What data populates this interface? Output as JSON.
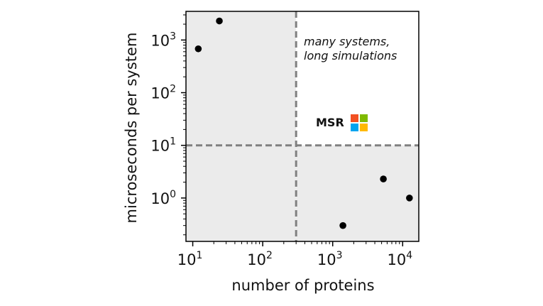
{
  "chart_data": {
    "type": "scatter",
    "xlabel": "number of proteins",
    "ylabel": "microseconds per system",
    "x_scale": "log",
    "y_scale": "log",
    "xlim": [
      8,
      17000
    ],
    "ylim": [
      0.15,
      3500
    ],
    "x_ticks": [
      {
        "base": "10",
        "exp": "1",
        "value": 10
      },
      {
        "base": "10",
        "exp": "2",
        "value": 100
      },
      {
        "base": "10",
        "exp": "3",
        "value": 1000
      },
      {
        "base": "10",
        "exp": "4",
        "value": 10000
      }
    ],
    "y_ticks": [
      {
        "base": "10",
        "exp": "0",
        "value": 1
      },
      {
        "base": "10",
        "exp": "1",
        "value": 10
      },
      {
        "base": "10",
        "exp": "2",
        "value": 100
      },
      {
        "base": "10",
        "exp": "3",
        "value": 1000
      }
    ],
    "thresholds": {
      "x": 300,
      "y": 10
    },
    "shaded_quadrants": [
      "top-left",
      "bottom-left",
      "bottom-right"
    ],
    "points": [
      {
        "x": 12,
        "y": 680
      },
      {
        "x": 24,
        "y": 2300
      },
      {
        "x": 1400,
        "y": 0.3
      },
      {
        "x": 5300,
        "y": 2.3
      },
      {
        "x": 12500,
        "y": 1.0
      }
    ],
    "annotation": {
      "lines": [
        "many systems,",
        "long simulations"
      ]
    },
    "logo": {
      "text": "MSR",
      "colors": [
        "#f25022",
        "#7fba00",
        "#00a4ef",
        "#ffb900"
      ]
    },
    "colors": {
      "shade": "#ebebeb",
      "threshold_line": "#808080",
      "point": "#000000"
    },
    "grid": false
  }
}
